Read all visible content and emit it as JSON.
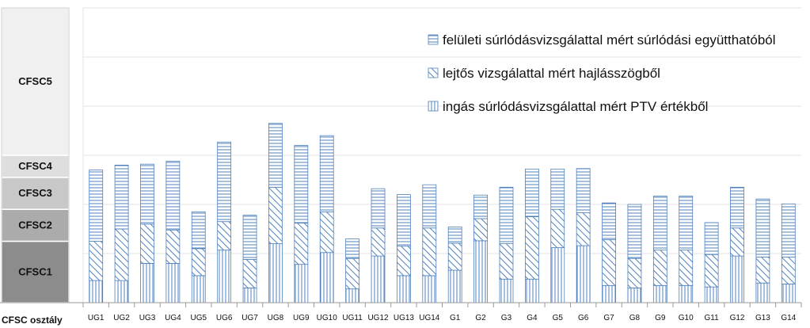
{
  "chart_data": {
    "type": "bar",
    "stacked": true,
    "title": "",
    "ylabel": "",
    "xlabel": "CFSC osztály",
    "ylim": [
      0,
      6
    ],
    "grid": true,
    "legend_position": "top-right",
    "categories": [
      "UG1",
      "UG2",
      "UG3",
      "UG4",
      "UG5",
      "UG6",
      "UG7",
      "UG8",
      "UG9",
      "UG10",
      "UG11",
      "UG12",
      "UG13",
      "UG14",
      "G1",
      "G2",
      "G3",
      "G4",
      "G5",
      "G6",
      "G7",
      "G8",
      "G9",
      "G10",
      "G11",
      "G12",
      "G13",
      "G14"
    ],
    "series": [
      {
        "name": "ingás súrlódásvizsgálattal mért PTV értékből",
        "pattern": "vertical",
        "values": [
          0.45,
          0.45,
          0.8,
          0.8,
          0.55,
          1.07,
          0.3,
          1.2,
          0.78,
          1.02,
          0.28,
          0.95,
          0.55,
          0.55,
          0.66,
          1.26,
          0.48,
          0.48,
          1.12,
          1.16,
          0.35,
          0.3,
          0.35,
          0.35,
          0.32,
          0.95,
          0.4,
          0.38
        ]
      },
      {
        "name": "lejtős vizsgálattal mért hajlásszögből",
        "pattern": "diagonal",
        "values": [
          0.8,
          1.05,
          0.8,
          0.68,
          0.55,
          0.58,
          0.58,
          1.15,
          0.84,
          0.83,
          0.62,
          0.57,
          0.6,
          0.97,
          0.55,
          0.45,
          0.72,
          1.27,
          0.78,
          0.67,
          0.93,
          0.6,
          0.72,
          0.72,
          0.66,
          0.57,
          0.53,
          0.55
        ]
      },
      {
        "name": "felületi súrlódásvizsgálattal mért súrlódási együtthatóból",
        "pattern": "horizontal",
        "values": [
          1.45,
          1.3,
          1.22,
          1.4,
          0.75,
          1.62,
          0.9,
          1.3,
          1.58,
          1.55,
          0.4,
          0.8,
          1.05,
          0.88,
          0.33,
          0.48,
          1.15,
          0.97,
          0.82,
          0.9,
          0.75,
          1.1,
          1.1,
          1.1,
          0.65,
          0.83,
          1.18,
          1.08
        ]
      }
    ],
    "class_bands": [
      {
        "label": "CFSC1",
        "from": 0,
        "to": 1.25,
        "color": "#8c8c8c"
      },
      {
        "label": "CFSC2",
        "from": 1.25,
        "to": 1.9,
        "color": "#ababab"
      },
      {
        "label": "CFSC3",
        "from": 1.9,
        "to": 2.55,
        "color": "#c8c8c8"
      },
      {
        "label": "CFSC4",
        "from": 2.55,
        "to": 3.0,
        "color": "#dedede"
      },
      {
        "label": "CFSC5",
        "from": 3.0,
        "to": 6.0,
        "color": "#f0f0f0"
      }
    ],
    "colors": {
      "bar_stroke": "#4f81bd",
      "pattern": "#4f81bd",
      "grid": "#e3e3e3",
      "axis": "#9a9a9a"
    }
  }
}
